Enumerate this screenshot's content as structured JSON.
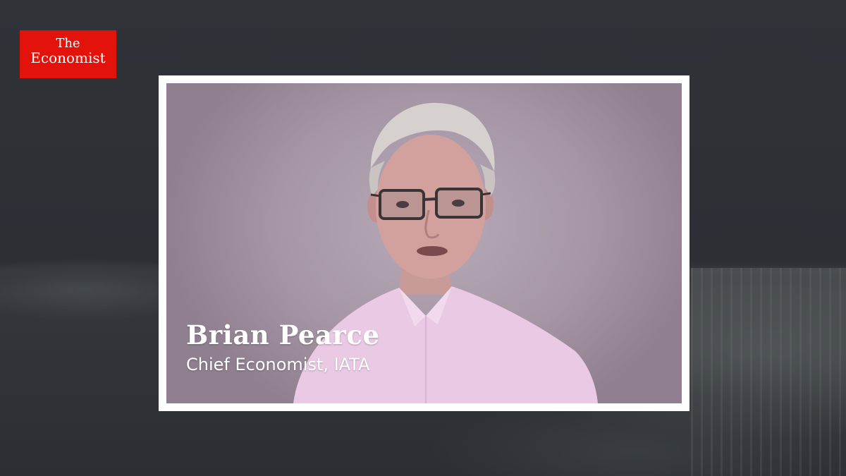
{
  "brand": {
    "line1": "The",
    "line2": "Economist",
    "color": "#e3120b"
  },
  "lower_third": {
    "name": "Brian Pearce",
    "title": "Chief Economist, IATA"
  },
  "colors": {
    "background": "#2c3035",
    "frame": "#ffffff",
    "wall": "#a696a5",
    "shirt": "#e9c9e4"
  }
}
